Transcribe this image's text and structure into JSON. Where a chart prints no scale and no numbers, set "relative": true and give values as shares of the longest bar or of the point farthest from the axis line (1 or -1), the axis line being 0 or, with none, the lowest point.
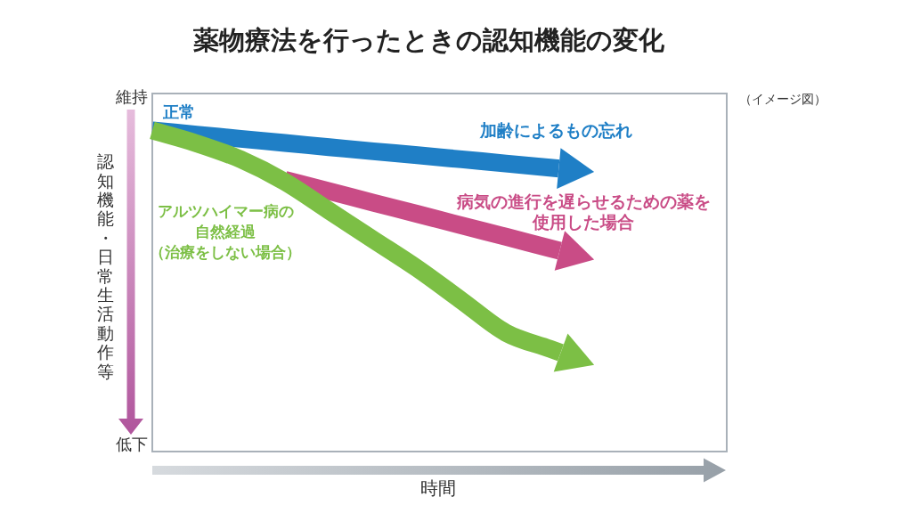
{
  "chart_data": {
    "type": "line",
    "title": "薬物療法を行ったときの認知機能の変化",
    "xlabel": "時間",
    "ylabel": "認知機能・日常生活動作等",
    "annotations": [
      "（イメージ図）",
      "維持",
      "低下",
      {
        "text": "正常",
        "y": 1
      }
    ],
    "relative": true,
    "categories": [
      null,
      null,
      null,
      null,
      null,
      null,
      null,
      null,
      null,
      null,
      null,
      null,
      null,
      null
    ],
    "series": [
      {
        "name": "加齢によるもの忘れ",
        "color": "#1f7fc6",
        "values": [
          1,
          0.987,
          0.974,
          0.961,
          0.948,
          0.935,
          0.923,
          0.91,
          0.897,
          0.884,
          0.871,
          null,
          null,
          null
        ]
      },
      {
        "name": "病気の進行を遅らせるための薬を使用した場合",
        "color": "#c94c86",
        "values": [
          null,
          null,
          null,
          0.846,
          0.811,
          0.775,
          0.74,
          0.704,
          0.669,
          0.633,
          0.598,
          null,
          null,
          null
        ]
      },
      {
        "name": "アルツハイマー病の自然経過（治療をしない場合）",
        "color": "#7cbf45",
        "values": [
          1,
          0.96,
          0.91,
          0.84,
          0.75,
          0.66,
          0.57,
          0.47,
          0.37,
          0.32,
          0.27,
          null,
          null,
          null
        ]
      }
    ]
  }
}
